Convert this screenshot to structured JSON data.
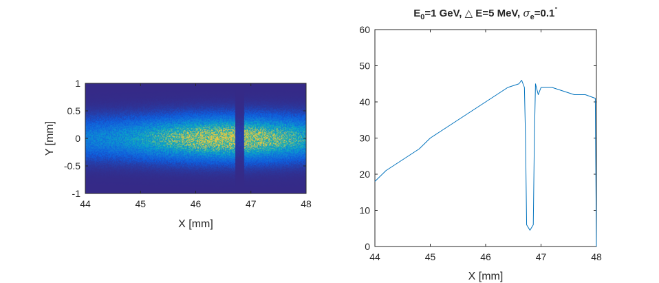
{
  "chart_data": [
    {
      "type": "heatmap",
      "title": "",
      "xlabel": "X [mm]",
      "ylabel": "Y [mm]",
      "xlim": [
        44,
        48
      ],
      "ylim": [
        -1,
        1
      ],
      "xticks": [
        44,
        45,
        46,
        47,
        48
      ],
      "yticks": [
        -1,
        -0.5,
        0,
        0.5,
        1
      ],
      "xtick_labels": [
        "44",
        "45",
        "46",
        "47",
        "48"
      ],
      "ytick_labels": [
        "-1",
        "-0.5",
        "0",
        "0.5",
        "1"
      ],
      "colormap": "parula",
      "background_color": "#3b2fb0",
      "gap_x_range": [
        46.72,
        46.88
      ],
      "beam_y_sigma": 0.25,
      "intensity_peak_x": 46.6
    },
    {
      "type": "line",
      "title": {
        "part1": "E",
        "sub1": "0",
        "part2": "=1 GeV, ",
        "delta": "△",
        "part3": " E=5 MeV, ",
        "sigma": "σ",
        "sub2": "e",
        "part4": "=0.1",
        "sup": "°"
      },
      "xlabel": "X [mm]",
      "ylabel": "",
      "xlim": [
        44,
        48
      ],
      "ylim": [
        0,
        60
      ],
      "xticks": [
        44,
        45,
        46,
        47,
        48
      ],
      "yticks": [
        0,
        10,
        20,
        30,
        40,
        50,
        60
      ],
      "xtick_labels": [
        "44",
        "45",
        "46",
        "47",
        "48"
      ],
      "ytick_labels": [
        "0",
        "10",
        "20",
        "30",
        "40",
        "50",
        "60"
      ],
      "line_color": "#0072bd",
      "series": [
        {
          "x": [
            44.0,
            44.2,
            44.4,
            44.6,
            44.8,
            45.0,
            45.2,
            45.4,
            45.6,
            45.8,
            46.0,
            46.2,
            46.4,
            46.6,
            46.65,
            46.7,
            46.72,
            46.74,
            46.8,
            46.86,
            46.88,
            46.9,
            46.95,
            47.0,
            47.2,
            47.4,
            47.6,
            47.8,
            47.98,
            48.0
          ],
          "y": [
            18,
            21,
            23,
            25,
            27,
            30,
            32,
            34,
            36,
            38,
            40,
            42,
            44,
            45,
            46,
            44,
            30,
            6,
            4.5,
            6,
            30,
            45,
            42,
            44,
            44,
            43,
            42,
            42,
            41,
            0
          ]
        }
      ]
    }
  ]
}
